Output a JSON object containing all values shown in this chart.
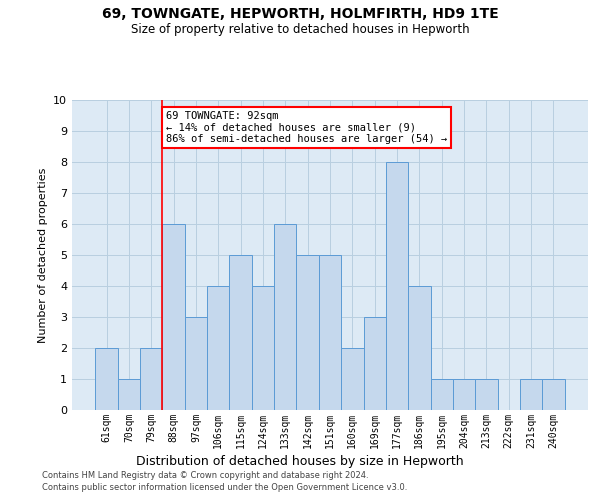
{
  "title1": "69, TOWNGATE, HEPWORTH, HOLMFIRTH, HD9 1TE",
  "title2": "Size of property relative to detached houses in Hepworth",
  "xlabel": "Distribution of detached houses by size in Hepworth",
  "ylabel": "Number of detached properties",
  "categories": [
    "61sqm",
    "70sqm",
    "79sqm",
    "88sqm",
    "97sqm",
    "106sqm",
    "115sqm",
    "124sqm",
    "133sqm",
    "142sqm",
    "151sqm",
    "160sqm",
    "169sqm",
    "177sqm",
    "186sqm",
    "195sqm",
    "204sqm",
    "213sqm",
    "222sqm",
    "231sqm",
    "240sqm"
  ],
  "values": [
    2,
    1,
    2,
    6,
    3,
    4,
    5,
    4,
    6,
    5,
    5,
    2,
    3,
    8,
    4,
    1,
    1,
    1,
    0,
    1,
    1
  ],
  "bar_color": "#c5d8ed",
  "bar_edge_color": "#5b9bd5",
  "red_line_index": 3,
  "ylim": [
    0,
    10
  ],
  "yticks": [
    0,
    1,
    2,
    3,
    4,
    5,
    6,
    7,
    8,
    9,
    10
  ],
  "annotation_line1": "69 TOWNGATE: 92sqm",
  "annotation_line2": "← 14% of detached houses are smaller (9)",
  "annotation_line3": "86% of semi-detached houses are larger (54) →",
  "annotation_box_color": "white",
  "annotation_box_edge_color": "red",
  "footer1": "Contains HM Land Registry data © Crown copyright and database right 2024.",
  "footer2": "Contains public sector information licensed under the Open Government Licence v3.0.",
  "grid_color": "#b8cfe0",
  "background_color": "#ddeaf5"
}
